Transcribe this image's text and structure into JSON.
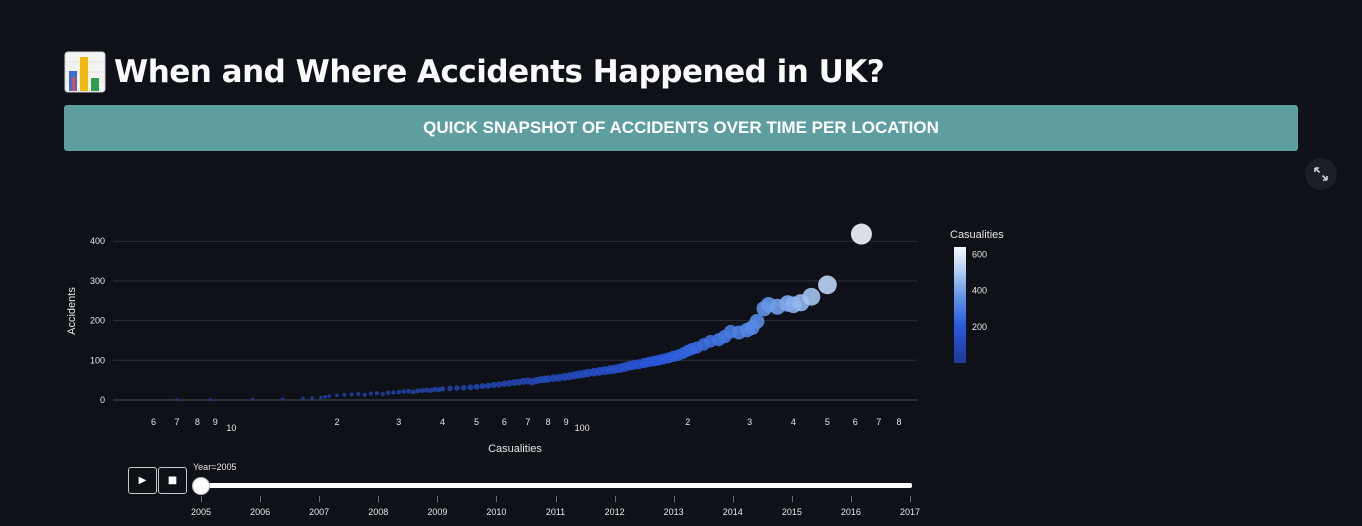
{
  "page": {
    "title": "When and Where Accidents Happened in UK?",
    "title_icon": "bar-chart-emoji-icon"
  },
  "banner": {
    "text": "QUICK SNAPSHOT OF ACCIDENTS OVER TIME PER LOCATION",
    "color": "#5f9ea0"
  },
  "toolbar": {
    "expand_icon": "fullscreen-expand-icon"
  },
  "chart_data": {
    "type": "scatter",
    "xlabel": "Casualities",
    "ylabel": "Accidents",
    "x_scale": "log",
    "x_tick_labels": [
      {
        "value": 6,
        "label": "6"
      },
      {
        "value": 7,
        "label": "7"
      },
      {
        "value": 8,
        "label": "8"
      },
      {
        "value": 9,
        "label": "9"
      },
      {
        "value": 10,
        "label": "10"
      },
      {
        "value": 20,
        "label": "2"
      },
      {
        "value": 30,
        "label": "3"
      },
      {
        "value": 40,
        "label": "4"
      },
      {
        "value": 50,
        "label": "5"
      },
      {
        "value": 60,
        "label": "6"
      },
      {
        "value": 70,
        "label": "7"
      },
      {
        "value": 80,
        "label": "8"
      },
      {
        "value": 90,
        "label": "9"
      },
      {
        "value": 100,
        "label": "100"
      },
      {
        "value": 200,
        "label": "2"
      },
      {
        "value": 300,
        "label": "3"
      },
      {
        "value": 400,
        "label": "4"
      },
      {
        "value": 500,
        "label": "5"
      },
      {
        "value": 600,
        "label": "6"
      },
      {
        "value": 700,
        "label": "7"
      },
      {
        "value": 800,
        "label": "8"
      }
    ],
    "y_ticks": [
      0,
      100,
      200,
      300,
      400
    ],
    "ylim": [
      -10,
      430
    ],
    "grid": true,
    "colorbar": {
      "title": "Casualities",
      "ticks": [
        200,
        400,
        600
      ],
      "range": [
        1,
        640
      ],
      "colors": [
        "#1f3a93",
        "#2957d9",
        "#5a8ee6",
        "#b4cff2",
        "#f5f9ff"
      ]
    },
    "points": [
      {
        "x": 7,
        "y": 1
      },
      {
        "x": 8.7,
        "y": 1
      },
      {
        "x": 11.5,
        "y": 2
      },
      {
        "x": 14,
        "y": 3
      },
      {
        "x": 16,
        "y": 4
      },
      {
        "x": 17,
        "y": 5
      },
      {
        "x": 18,
        "y": 6
      },
      {
        "x": 18.5,
        "y": 8
      },
      {
        "x": 19,
        "y": 10
      },
      {
        "x": 20,
        "y": 12
      },
      {
        "x": 21,
        "y": 13
      },
      {
        "x": 22,
        "y": 14
      },
      {
        "x": 23,
        "y": 15
      },
      {
        "x": 24,
        "y": 13
      },
      {
        "x": 25,
        "y": 16
      },
      {
        "x": 26,
        "y": 17
      },
      {
        "x": 27,
        "y": 15
      },
      {
        "x": 28,
        "y": 18
      },
      {
        "x": 29,
        "y": 19
      },
      {
        "x": 30,
        "y": 20
      },
      {
        "x": 31,
        "y": 21
      },
      {
        "x": 32,
        "y": 22
      },
      {
        "x": 33,
        "y": 20
      },
      {
        "x": 34,
        "y": 23
      },
      {
        "x": 35,
        "y": 24
      },
      {
        "x": 36,
        "y": 25
      },
      {
        "x": 37,
        "y": 24
      },
      {
        "x": 38,
        "y": 27
      },
      {
        "x": 39,
        "y": 26
      },
      {
        "x": 40,
        "y": 28
      },
      {
        "x": 42,
        "y": 29
      },
      {
        "x": 44,
        "y": 30
      },
      {
        "x": 46,
        "y": 31
      },
      {
        "x": 48,
        "y": 32
      },
      {
        "x": 50,
        "y": 33
      },
      {
        "x": 52,
        "y": 35
      },
      {
        "x": 54,
        "y": 36
      },
      {
        "x": 56,
        "y": 38
      },
      {
        "x": 58,
        "y": 39
      },
      {
        "x": 60,
        "y": 41
      },
      {
        "x": 62,
        "y": 42
      },
      {
        "x": 64,
        "y": 44
      },
      {
        "x": 66,
        "y": 45
      },
      {
        "x": 68,
        "y": 47
      },
      {
        "x": 70,
        "y": 48
      },
      {
        "x": 72,
        "y": 46
      },
      {
        "x": 74,
        "y": 49
      },
      {
        "x": 76,
        "y": 51
      },
      {
        "x": 78,
        "y": 52
      },
      {
        "x": 80,
        "y": 53
      },
      {
        "x": 83,
        "y": 55
      },
      {
        "x": 86,
        "y": 56
      },
      {
        "x": 89,
        "y": 58
      },
      {
        "x": 92,
        "y": 60
      },
      {
        "x": 95,
        "y": 62
      },
      {
        "x": 98,
        "y": 64
      },
      {
        "x": 101,
        "y": 66
      },
      {
        "x": 104,
        "y": 68
      },
      {
        "x": 108,
        "y": 70
      },
      {
        "x": 112,
        "y": 72
      },
      {
        "x": 116,
        "y": 74
      },
      {
        "x": 120,
        "y": 76
      },
      {
        "x": 124,
        "y": 78
      },
      {
        "x": 128,
        "y": 80
      },
      {
        "x": 132,
        "y": 83
      },
      {
        "x": 136,
        "y": 86
      },
      {
        "x": 140,
        "y": 88
      },
      {
        "x": 145,
        "y": 90
      },
      {
        "x": 150,
        "y": 93
      },
      {
        "x": 155,
        "y": 96
      },
      {
        "x": 160,
        "y": 98
      },
      {
        "x": 165,
        "y": 100
      },
      {
        "x": 170,
        "y": 103
      },
      {
        "x": 176,
        "y": 106
      },
      {
        "x": 182,
        "y": 110
      },
      {
        "x": 188,
        "y": 113
      },
      {
        "x": 194,
        "y": 118
      },
      {
        "x": 200,
        "y": 124
      },
      {
        "x": 205,
        "y": 128
      },
      {
        "x": 212,
        "y": 132
      },
      {
        "x": 222,
        "y": 140
      },
      {
        "x": 232,
        "y": 148
      },
      {
        "x": 245,
        "y": 152
      },
      {
        "x": 255,
        "y": 160
      },
      {
        "x": 265,
        "y": 172
      },
      {
        "x": 280,
        "y": 170
      },
      {
        "x": 295,
        "y": 176
      },
      {
        "x": 305,
        "y": 182
      },
      {
        "x": 315,
        "y": 198
      },
      {
        "x": 330,
        "y": 230
      },
      {
        "x": 340,
        "y": 240
      },
      {
        "x": 360,
        "y": 235
      },
      {
        "x": 385,
        "y": 243
      },
      {
        "x": 400,
        "y": 240
      },
      {
        "x": 420,
        "y": 245
      },
      {
        "x": 450,
        "y": 260
      },
      {
        "x": 500,
        "y": 290
      },
      {
        "x": 625,
        "y": 418
      }
    ]
  },
  "animation": {
    "play_icon": "play-icon",
    "stop_icon": "stop-icon",
    "current_label": "Year=2005",
    "current_year": "2005",
    "years": [
      "2005",
      "2006",
      "2007",
      "2008",
      "2009",
      "2010",
      "2011",
      "2012",
      "2013",
      "2014",
      "2015",
      "2016",
      "2017"
    ],
    "play_symbol": "▶",
    "stop_symbol": "■"
  }
}
